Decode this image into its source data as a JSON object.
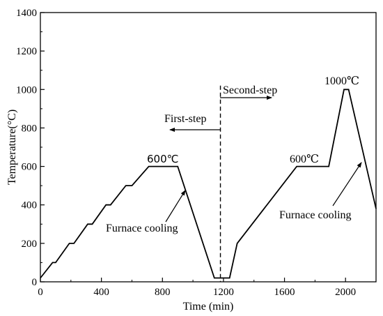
{
  "chart_data": {
    "type": "line",
    "xlabel": "Time (min)",
    "ylabel": "Temperature(°C)",
    "xlim": [
      0,
      2200
    ],
    "ylim": [
      0,
      1400
    ],
    "x_ticks": [
      0,
      400,
      800,
      1200,
      1600,
      2000
    ],
    "y_ticks": [
      0,
      200,
      400,
      600,
      800,
      1000,
      1200,
      1400
    ],
    "grid": false,
    "series": [
      {
        "x": [
          0,
          80,
          100,
          190,
          220,
          310,
          340,
          430,
          460,
          560,
          600,
          710,
          740,
          900,
          1140,
          1200,
          1240,
          1290,
          1680,
          1890,
          1990,
          2020,
          2200
        ],
        "y": [
          20,
          100,
          100,
          200,
          200,
          300,
          300,
          400,
          400,
          500,
          500,
          600,
          600,
          600,
          20,
          20,
          20,
          200,
          600,
          600,
          1000,
          1000,
          380
        ]
      }
    ],
    "divider": {
      "x": 1180,
      "y_top": 1020
    },
    "annotations": {
      "first_step": "First-step",
      "second_step": "Second-step",
      "label_600_left": "600℃",
      "label_600_right": "600℃",
      "label_1000": "1000℃",
      "cooling_left": "Furnace cooling",
      "cooling_right": "Furnace cooling"
    }
  }
}
